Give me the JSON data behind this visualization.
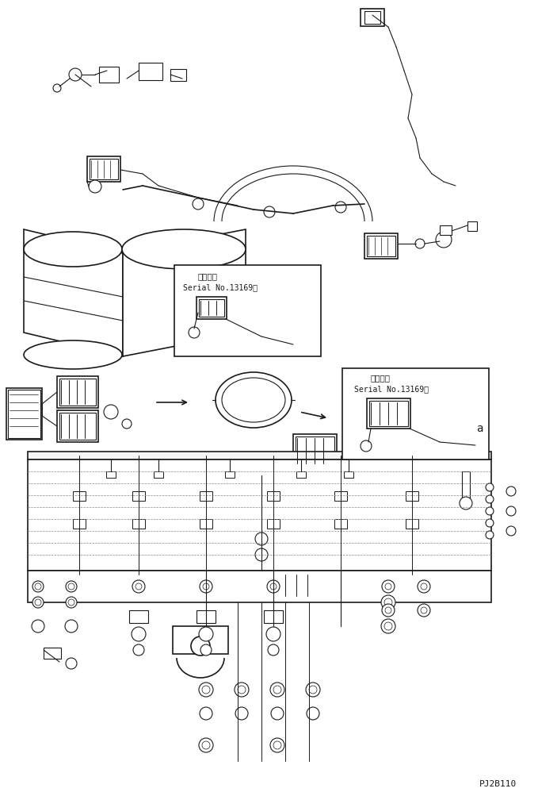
{
  "figure_width": 6.79,
  "figure_height": 10.04,
  "dpi": 100,
  "bg_color": "#ffffff",
  "line_color": "#1a1a1a",
  "label_color": "#1a1a1a",
  "serial_label1": "適用号機",
  "serial_text1": "Serial No.13169～",
  "serial_label2": "適用号機",
  "serial_text2": "Serial No.13169～",
  "part_code": "PJ2B110"
}
